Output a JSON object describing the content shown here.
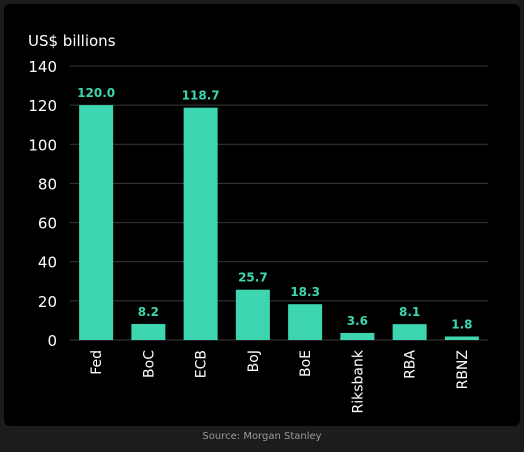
{
  "chart_data": {
    "type": "bar",
    "ylabel": "US$ billions",
    "categories": [
      "Fed",
      "BoC",
      "ECB",
      "BoJ",
      "BoE",
      "Riksbank",
      "RBA",
      "RBNZ"
    ],
    "values": [
      120.0,
      8.2,
      118.7,
      25.7,
      18.3,
      3.6,
      8.1,
      1.8
    ],
    "value_labels": [
      "120.0",
      "8.2",
      "118.7",
      "25.7",
      "18.3",
      "3.6",
      "8.1",
      "1.8"
    ],
    "yticks": [
      0,
      20,
      40,
      60,
      80,
      100,
      120,
      140
    ],
    "ylim": [
      0,
      140
    ],
    "grid": true,
    "bar_color": "#3dd6b0",
    "label_color": "#3dd6b0",
    "text_color": "#ffffff",
    "grid_color": "#3a3a3a"
  },
  "source": "Source: Morgan Stanley"
}
